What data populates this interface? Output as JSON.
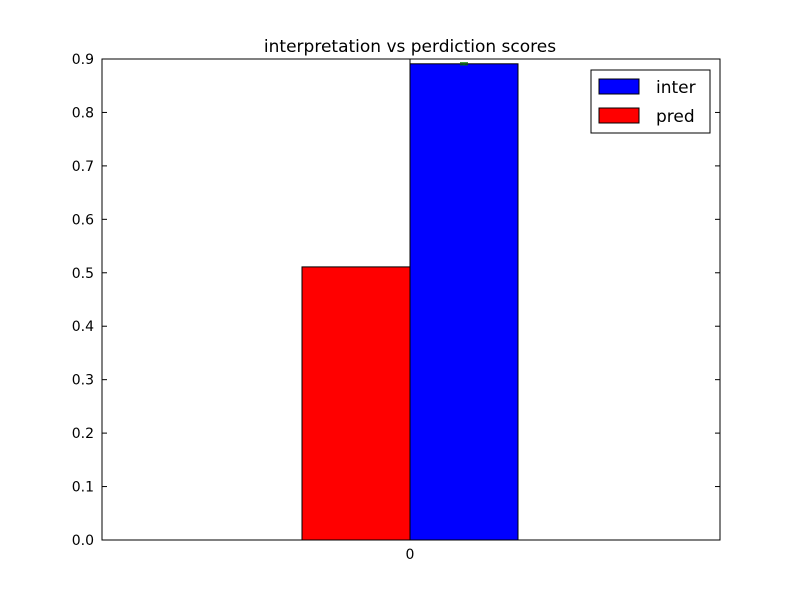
{
  "chart_data": {
    "type": "bar",
    "title": "interpretation vs perdiction scores",
    "xlabel": "",
    "ylabel": "",
    "categories": [
      "0"
    ],
    "series": [
      {
        "name": "pred",
        "values": [
          0.511
        ],
        "color": "#ff0000"
      },
      {
        "name": "inter",
        "values": [
          0.891
        ],
        "color": "#0000ff",
        "error": [
          0.002
        ],
        "error_color": "#008000"
      }
    ],
    "ylim": [
      0,
      0.9
    ],
    "yticks": [
      {
        "value": 0.0,
        "label": "0.0"
      },
      {
        "value": 0.1,
        "label": "0.1"
      },
      {
        "value": 0.2,
        "label": "0.2"
      },
      {
        "value": 0.3,
        "label": "0.3"
      },
      {
        "value": 0.4,
        "label": "0.4"
      },
      {
        "value": 0.5,
        "label": "0.5"
      },
      {
        "value": 0.6,
        "label": "0.6"
      },
      {
        "value": 0.7,
        "label": "0.7"
      },
      {
        "value": 0.8,
        "label": "0.8"
      },
      {
        "value": 0.9,
        "label": "0.9"
      }
    ],
    "legend": {
      "position": "top-right",
      "entries": [
        {
          "label": "inter",
          "color": "#0000ff"
        },
        {
          "label": "pred",
          "color": "#ff0000"
        }
      ]
    },
    "grid": false
  }
}
